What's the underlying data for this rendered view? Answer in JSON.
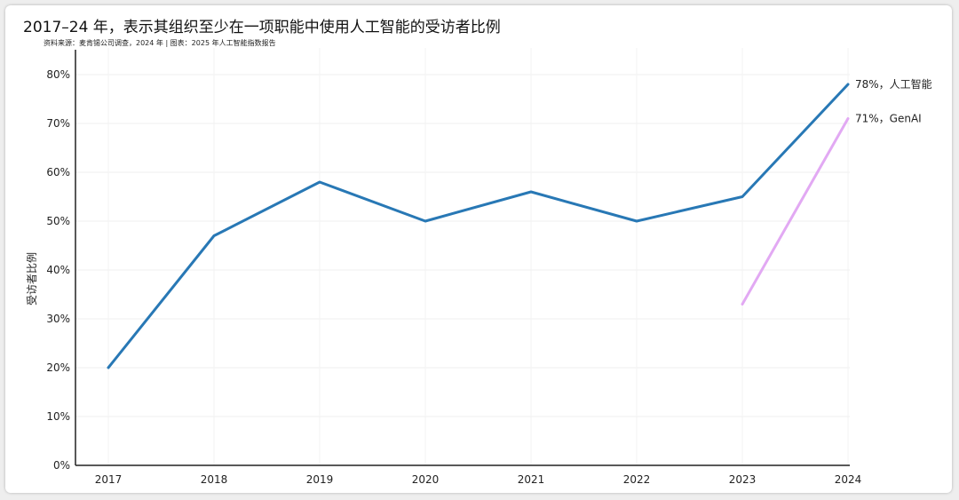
{
  "title": "2017–24 年，表示其组织至少在一项职能中使用人工智能的受访者比例",
  "subtitle": "资料来源：麦肯锡公司调查，2024 年 | 图表：2025 年人工智能指数报告",
  "chart_data": {
    "type": "line",
    "title": "2017–24 年，表示其组织至少在一项职能中使用人工智能的受访者比例",
    "subtitle": "资料来源：麦肯锡公司调查，2024 年 | 图表：2025 年人工智能指数报告",
    "xlabel": "",
    "ylabel": "受访者比例",
    "x": [
      "2017",
      "2018",
      "2019",
      "2020",
      "2021",
      "2022",
      "2023",
      "2024"
    ],
    "ylim": [
      0,
      80
    ],
    "yticks": [
      "0%",
      "10%",
      "20%",
      "30%",
      "40%",
      "50%",
      "60%",
      "70%",
      "80%"
    ],
    "grid": true,
    "series": [
      {
        "name": "人工智能",
        "color": "#2878b5",
        "values": [
          20,
          47,
          58,
          50,
          56,
          50,
          55,
          78
        ],
        "end_label": "78%，人工智能"
      },
      {
        "name": "GenAI",
        "color": "#e2a9f3",
        "values": [
          null,
          null,
          null,
          null,
          null,
          null,
          33,
          71
        ],
        "end_label": "71%，GenAI"
      }
    ]
  }
}
